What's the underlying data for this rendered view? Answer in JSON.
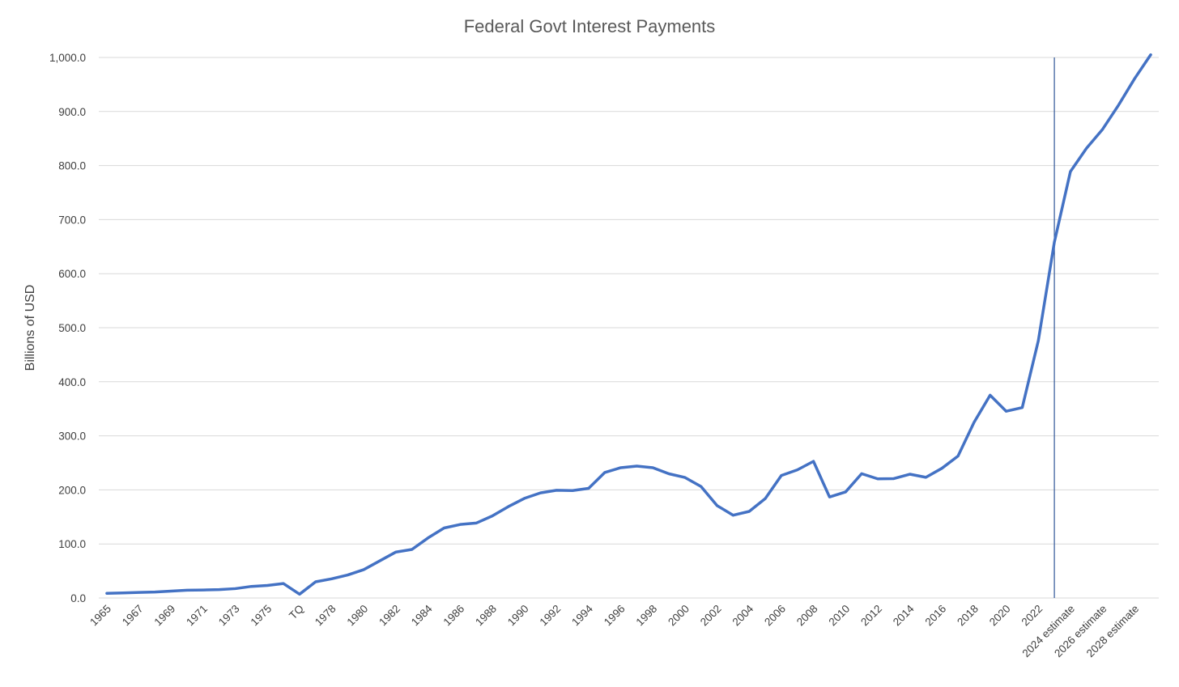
{
  "colors": {
    "series": "#4472C4",
    "divider": "#2F5597",
    "grid": "#D9D9D9",
    "text": "#404040",
    "title": "#595959"
  },
  "chart_data": {
    "type": "line",
    "title": "Federal Govt Interest Payments",
    "xlabel": "",
    "ylabel": "Billions of USD",
    "ylim": [
      0,
      1000
    ],
    "ytick_values": [
      0,
      100,
      200,
      300,
      400,
      500,
      600,
      700,
      800,
      900,
      1000
    ],
    "ytick_labels": [
      "0.0",
      "100.0",
      "200.0",
      "300.0",
      "400.0",
      "500.0",
      "600.0",
      "700.0",
      "800.0",
      "900.0",
      "1,000.0"
    ],
    "grid": true,
    "legend": "none",
    "categories": [
      "1965",
      "1966",
      "1967",
      "1968",
      "1969",
      "1970",
      "1971",
      "1972",
      "1973",
      "1974",
      "1975",
      "1976",
      "TQ",
      "1977",
      "1978",
      "1979",
      "1980",
      "1981",
      "1982",
      "1983",
      "1984",
      "1985",
      "1986",
      "1987",
      "1988",
      "1989",
      "1990",
      "1991",
      "1992",
      "1993",
      "1994",
      "1995",
      "1996",
      "1997",
      "1998",
      "1999",
      "2000",
      "2001",
      "2002",
      "2003",
      "2004",
      "2005",
      "2006",
      "2007",
      "2008",
      "2009",
      "2010",
      "2011",
      "2012",
      "2013",
      "2014",
      "2015",
      "2016",
      "2017",
      "2018",
      "2019",
      "2020",
      "2021",
      "2022",
      "2023",
      "2024 estimate",
      "2025 estimate",
      "2026 estimate",
      "2027 estimate",
      "2028 estimate",
      "2029 estimate"
    ],
    "tick_labels_shown": [
      "1965",
      "1967",
      "1969",
      "1971",
      "1973",
      "1975",
      "TQ",
      "1978",
      "1980",
      "1982",
      "1984",
      "1986",
      "1988",
      "1990",
      "1992",
      "1994",
      "1996",
      "1998",
      "2000",
      "2002",
      "2004",
      "2006",
      "2008",
      "2010",
      "2012",
      "2014",
      "2016",
      "2018",
      "2020",
      "2022",
      "2024 estimate",
      "2026 estimate",
      "2028 estimate"
    ],
    "series": [
      {
        "values": [
          8.6,
          9.4,
          10.3,
          11.1,
          12.7,
          14.4,
          14.8,
          15.5,
          17.3,
          21.4,
          23.2,
          26.7,
          7.0,
          29.9,
          35.5,
          42.6,
          52.5,
          68.8,
          85.0,
          89.8,
          111.1,
          129.5,
          136.0,
          138.6,
          151.8,
          169.0,
          184.3,
          194.4,
          199.3,
          198.7,
          202.9,
          232.1,
          241.1,
          244.0,
          241.1,
          229.8,
          222.9,
          206.2,
          170.9,
          153.1,
          160.2,
          184.0,
          226.6,
          237.1,
          252.8,
          186.9,
          196.2,
          230.0,
          220.4,
          220.9,
          229.0,
          223.2,
          240.0,
          262.6,
          325.0,
          375.2,
          345.5,
          352.3,
          475.9,
          658.3,
          789.0,
          832.0,
          867.0,
          912.0,
          961.0,
          1005.0
        ]
      }
    ],
    "annotations": {
      "vertical_line_at_category": "2023"
    }
  }
}
